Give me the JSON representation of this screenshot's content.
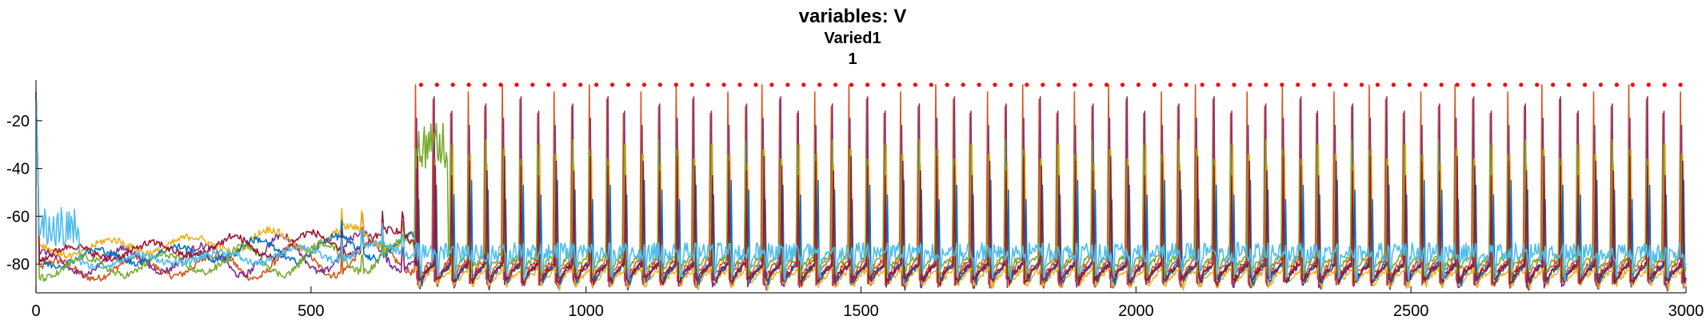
{
  "chart_data": {
    "type": "line",
    "title": "variables: V",
    "subtitle": "Varied1",
    "subsubtitle": "1",
    "xlabel": "",
    "ylabel": "",
    "xlim": [
      0,
      3000
    ],
    "ylim": [
      -92,
      -3
    ],
    "xticks": [
      0,
      500,
      1000,
      1500,
      2000,
      2500,
      3000
    ],
    "xtick_labels": [
      "0",
      "500",
      "1000",
      "1500",
      "2000",
      "2500",
      "3000"
    ],
    "yticks": [
      -20,
      -40,
      -60,
      -80
    ],
    "ytick_labels": [
      "-20",
      "-40",
      "-60",
      "-80"
    ],
    "grid": false,
    "markers": {
      "y": -5,
      "x_start": 700,
      "x_end": 2990,
      "count": 80,
      "color": "#ff0000"
    },
    "series": [
      {
        "color": "#d95319",
        "burst_start": 690,
        "period": 31.5,
        "phase": 0,
        "peak": -5,
        "trough": -89,
        "rest": -78,
        "pre_base": -83,
        "pre_amp": 4
      },
      {
        "color": "#7e2f8e",
        "burst_start": 690,
        "period": 31.5,
        "phase": 2,
        "peak": -10,
        "trough": -90,
        "rest": -80,
        "pre_base": -80,
        "pre_amp": 5
      },
      {
        "color": "#edb120",
        "burst_start": 690,
        "period": 31.5,
        "phase": 4,
        "peak": -30,
        "trough": -90,
        "rest": -82,
        "pre_base": -74,
        "pre_amp": 3
      },
      {
        "color": "#0072bd",
        "burst_start": 690,
        "period": 31.5,
        "phase": 6,
        "peak": -45,
        "trough": -88,
        "rest": -79,
        "pre_base": -78,
        "pre_amp": 3
      },
      {
        "color": "#77ac30",
        "burst_start": 690,
        "period": 31.5,
        "phase": 1,
        "peak": -28,
        "trough": -85,
        "rest": -76,
        "pre_base": -82,
        "pre_amp": 4
      },
      {
        "color": "#a2142f",
        "burst_start": 690,
        "period": 31.5,
        "phase": 3,
        "peak": -35,
        "trough": -88,
        "rest": -80,
        "pre_base": -76,
        "pre_amp": 3
      },
      {
        "color": "#4dbeee",
        "burst_start": 690,
        "period": 31.5,
        "phase": 8,
        "peak": -62,
        "trough": -80,
        "rest": -75,
        "pre_base": -80,
        "pre_amp": 2
      }
    ]
  }
}
